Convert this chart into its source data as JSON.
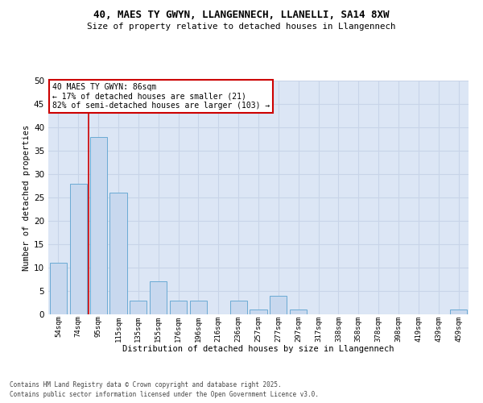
{
  "title1": "40, MAES TY GWYN, LLANGENNECH, LLANELLI, SA14 8XW",
  "title2": "Size of property relative to detached houses in Llangennech",
  "xlabel": "Distribution of detached houses by size in Llangennech",
  "ylabel": "Number of detached properties",
  "categories": [
    "54sqm",
    "74sqm",
    "95sqm",
    "115sqm",
    "135sqm",
    "155sqm",
    "176sqm",
    "196sqm",
    "216sqm",
    "236sqm",
    "257sqm",
    "277sqm",
    "297sqm",
    "317sqm",
    "338sqm",
    "358sqm",
    "378sqm",
    "398sqm",
    "419sqm",
    "439sqm",
    "459sqm"
  ],
  "values": [
    11,
    28,
    38,
    26,
    3,
    7,
    3,
    3,
    0,
    3,
    1,
    4,
    1,
    0,
    0,
    0,
    0,
    0,
    0,
    0,
    1
  ],
  "bar_color": "#c8d8ee",
  "bar_edge_color": "#6aaad4",
  "red_line_x": 1.5,
  "annotation_title": "40 MAES TY GWYN: 86sqm",
  "annotation_line1": "← 17% of detached houses are smaller (21)",
  "annotation_line2": "82% of semi-detached houses are larger (103) →",
  "annotation_box_color": "#ffffff",
  "annotation_box_edge": "#cc0000",
  "red_line_color": "#cc0000",
  "grid_color": "#c8d4e8",
  "background_color": "#dce6f5",
  "ylim": [
    0,
    50
  ],
  "yticks": [
    0,
    5,
    10,
    15,
    20,
    25,
    30,
    35,
    40,
    45,
    50
  ],
  "footnote1": "Contains HM Land Registry data © Crown copyright and database right 2025.",
  "footnote2": "Contains public sector information licensed under the Open Government Licence v3.0."
}
